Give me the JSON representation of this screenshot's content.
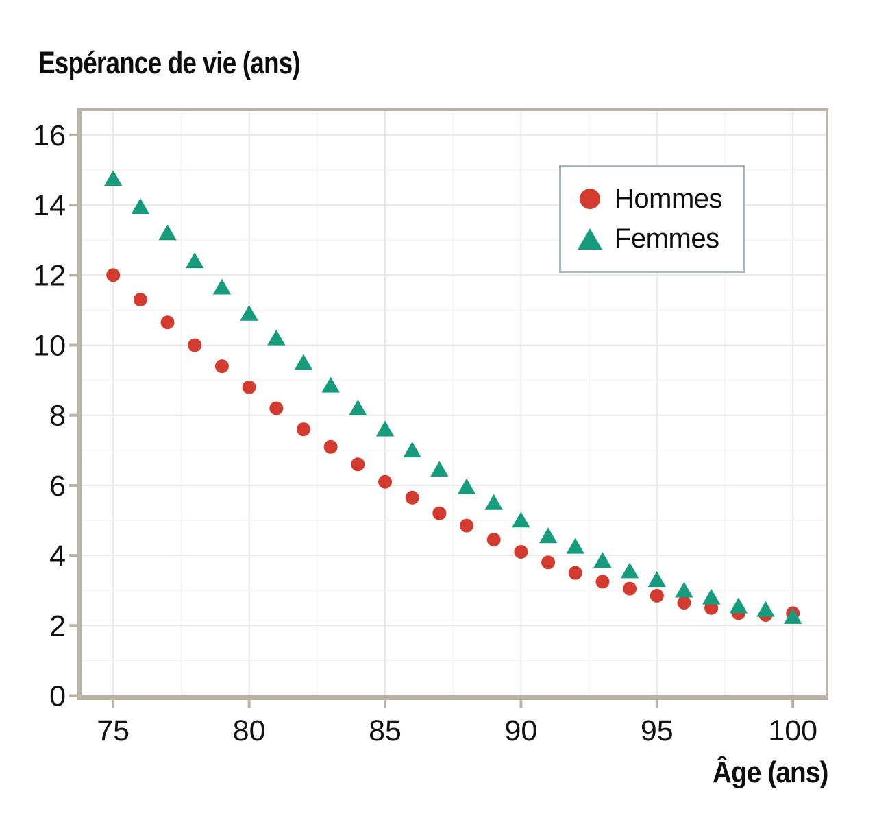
{
  "chart_data": {
    "type": "scatter",
    "title": "Espérance de vie (ans)",
    "xlabel": "Âge (ans)",
    "ylabel": "",
    "x_ticks": [
      75,
      80,
      85,
      90,
      95,
      100
    ],
    "y_ticks": [
      0,
      2,
      4,
      6,
      8,
      10,
      12,
      14,
      16
    ],
    "x_minor_step": 2.5,
    "y_minor_step": 1,
    "xlim": [
      73.8,
      101.2
    ],
    "ylim": [
      0,
      16.7
    ],
    "grid": true,
    "legend_position": "top-right",
    "x": [
      75,
      76,
      77,
      78,
      79,
      80,
      81,
      82,
      83,
      84,
      85,
      86,
      87,
      88,
      89,
      90,
      91,
      92,
      93,
      94,
      95,
      96,
      97,
      98,
      99,
      100
    ],
    "series": [
      {
        "name": "Hommes",
        "marker": "circle",
        "color": "#d23b2e",
        "values": [
          12.0,
          11.3,
          10.65,
          10.0,
          9.4,
          8.8,
          8.2,
          7.6,
          7.1,
          6.6,
          6.1,
          5.65,
          5.2,
          4.85,
          4.45,
          4.1,
          3.8,
          3.5,
          3.25,
          3.05,
          2.85,
          2.65,
          2.5,
          2.35,
          2.3,
          2.35
        ]
      },
      {
        "name": "Femmes",
        "marker": "triangle",
        "color": "#169b7d",
        "values": [
          14.75,
          13.95,
          13.2,
          12.4,
          11.65,
          10.9,
          10.2,
          9.5,
          8.85,
          8.2,
          7.6,
          7.0,
          6.45,
          5.95,
          5.5,
          5.0,
          4.55,
          4.25,
          3.85,
          3.55,
          3.3,
          3.0,
          2.8,
          2.55,
          2.45,
          2.25
        ]
      }
    ],
    "colors": {
      "axis": "#b9b3a6",
      "grid_major": "#e9e9e4",
      "grid_minor": "#f4f4f0",
      "legend_border": "#a7b7c1",
      "text": "#111111"
    }
  }
}
